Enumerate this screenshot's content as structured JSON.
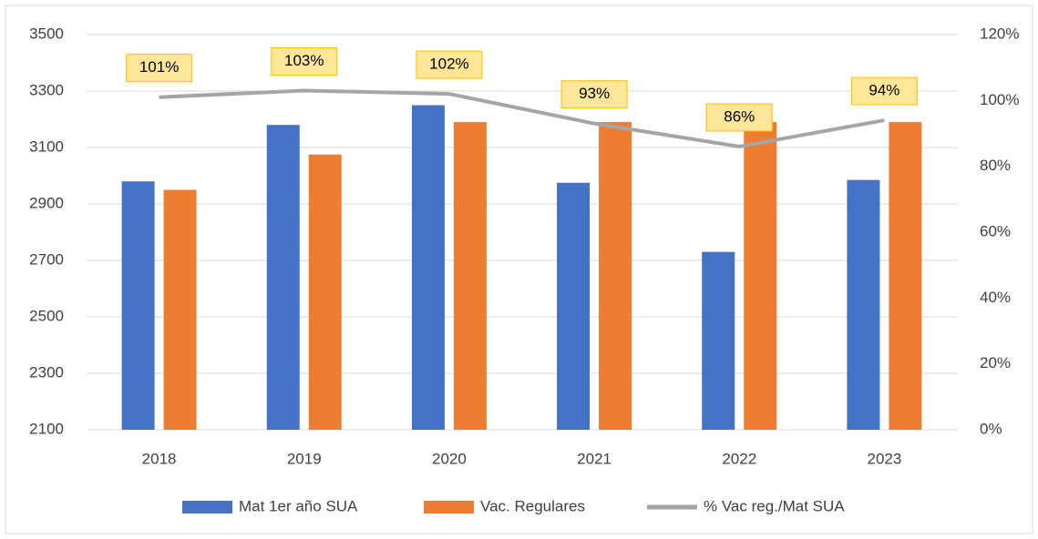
{
  "chart_data": {
    "type": "bar",
    "categories": [
      "2018",
      "2019",
      "2020",
      "2021",
      "2022",
      "2023"
    ],
    "series": [
      {
        "name": "Mat 1er año SUA",
        "color": "#4472c4",
        "values": [
          2980,
          3180,
          3250,
          2975,
          2730,
          2985
        ]
      },
      {
        "name": "Vac. Regulares",
        "color": "#ed7d31",
        "values": [
          2950,
          3075,
          3190,
          3190,
          3190,
          3190
        ]
      },
      {
        "name": "% Vac reg./Mat SUA",
        "color": "#a5a5a5",
        "type": "line",
        "axis": "y2",
        "values": [
          101,
          103,
          102,
          93,
          86,
          94
        ],
        "value_labels": [
          "101%",
          "103%",
          "102%",
          "93%",
          "86%",
          "94%"
        ]
      }
    ],
    "ylim": [
      2100,
      3500
    ],
    "yticks": [
      2100,
      2300,
      2500,
      2700,
      2900,
      3100,
      3300,
      3500
    ],
    "y2lim": [
      0,
      120
    ],
    "y2ticks": [
      {
        "value": 0,
        "label": "0%"
      },
      {
        "value": 20,
        "label": "20%"
      },
      {
        "value": 40,
        "label": "40%"
      },
      {
        "value": 60,
        "label": "60%"
      },
      {
        "value": 80,
        "label": "80%"
      },
      {
        "value": 100,
        "label": "100%"
      },
      {
        "value": 120,
        "label": "120%"
      }
    ],
    "grid": true,
    "legend": "bottom"
  }
}
